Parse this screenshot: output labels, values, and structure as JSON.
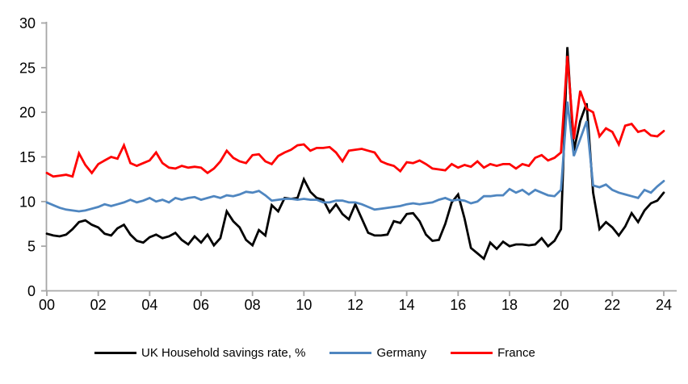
{
  "chart_data": {
    "type": "line",
    "title": "",
    "xlabel": "",
    "ylabel": "",
    "grid": false,
    "legend_position": "bottom",
    "ylim": [
      0,
      30
    ],
    "y_ticks": [
      0,
      5,
      10,
      15,
      20,
      25,
      30
    ],
    "x_tick_years": [
      2000,
      2002,
      2004,
      2006,
      2008,
      2010,
      2012,
      2014,
      2016,
      2018,
      2020,
      2022,
      2024
    ],
    "x_tick_labels": [
      "00",
      "02",
      "04",
      "06",
      "08",
      "10",
      "12",
      "14",
      "16",
      "18",
      "20",
      "22",
      "24"
    ],
    "x_start_year": 2000,
    "x_step_years": 0.25,
    "x_frequency": "quarterly",
    "axis_color": "#a6a6a6",
    "text_color": "#000000",
    "series": [
      {
        "name": "UK Household savings rate, %",
        "color": "#000000",
        "values": [
          6.4,
          6.2,
          6.1,
          6.3,
          6.9,
          7.7,
          7.9,
          7.4,
          7.1,
          6.4,
          6.2,
          7.0,
          7.4,
          6.3,
          5.6,
          5.4,
          6.0,
          6.3,
          5.9,
          6.1,
          6.5,
          5.7,
          5.2,
          6.1,
          5.4,
          6.3,
          5.1,
          5.9,
          8.9,
          7.8,
          7.1,
          5.7,
          5.1,
          6.8,
          6.2,
          9.6,
          8.9,
          10.4,
          10.3,
          10.4,
          12.5,
          11.1,
          10.4,
          10.2,
          8.8,
          9.7,
          8.6,
          8.0,
          9.7,
          8.1,
          6.5,
          6.2,
          6.2,
          6.3,
          7.8,
          7.6,
          8.6,
          8.7,
          7.8,
          6.3,
          5.6,
          5.7,
          7.5,
          9.9,
          10.8,
          8.1,
          4.8,
          4.2,
          3.6,
          5.4,
          4.7,
          5.5,
          5.0,
          5.2,
          5.2,
          5.1,
          5.2,
          5.9,
          5.0,
          5.6,
          6.9,
          27.3,
          15.7,
          19.0,
          21.0,
          11.0,
          6.9,
          7.7,
          7.1,
          6.2,
          7.2,
          8.7,
          7.7,
          9.0,
          9.8,
          10.1,
          11.0
        ]
      },
      {
        "name": "Germany",
        "color": "#4f86c0",
        "values": [
          9.9,
          9.6,
          9.3,
          9.1,
          9.0,
          8.9,
          9.0,
          9.2,
          9.4,
          9.7,
          9.5,
          9.7,
          9.9,
          10.2,
          9.9,
          10.1,
          10.4,
          10.0,
          10.2,
          9.9,
          10.4,
          10.2,
          10.4,
          10.5,
          10.2,
          10.4,
          10.6,
          10.4,
          10.7,
          10.6,
          10.8,
          11.1,
          11.0,
          11.2,
          10.7,
          10.1,
          10.2,
          10.3,
          10.3,
          10.2,
          10.3,
          10.2,
          10.2,
          9.9,
          9.9,
          10.1,
          10.1,
          9.9,
          9.9,
          9.7,
          9.4,
          9.1,
          9.2,
          9.3,
          9.4,
          9.5,
          9.7,
          9.8,
          9.7,
          9.8,
          9.9,
          10.2,
          10.4,
          10.1,
          10.2,
          10.1,
          9.8,
          10.0,
          10.6,
          10.6,
          10.7,
          10.7,
          11.4,
          11.0,
          11.3,
          10.8,
          11.3,
          11.0,
          10.7,
          10.6,
          11.3,
          21.2,
          15.1,
          17.0,
          19.0,
          11.8,
          11.6,
          11.9,
          11.3,
          11.0,
          10.8,
          10.6,
          10.4,
          11.3,
          11.0,
          11.7,
          12.3
        ]
      },
      {
        "name": "France",
        "color": "#ff0000",
        "values": [
          13.2,
          12.8,
          12.9,
          13.0,
          12.8,
          15.4,
          14.1,
          13.2,
          14.2,
          14.6,
          15.0,
          14.8,
          16.3,
          14.3,
          14.0,
          14.3,
          14.6,
          15.5,
          14.3,
          13.8,
          13.7,
          14.0,
          13.8,
          13.9,
          13.8,
          13.2,
          13.7,
          14.5,
          15.7,
          14.9,
          14.5,
          14.3,
          15.2,
          15.3,
          14.5,
          14.2,
          15.1,
          15.5,
          15.8,
          16.3,
          16.4,
          15.7,
          16.0,
          16.0,
          16.1,
          15.5,
          14.5,
          15.7,
          15.8,
          15.9,
          15.7,
          15.5,
          14.5,
          14.2,
          14.0,
          13.4,
          14.4,
          14.3,
          14.6,
          14.2,
          13.7,
          13.6,
          13.5,
          14.2,
          13.8,
          14.1,
          13.9,
          14.5,
          13.8,
          14.2,
          14.0,
          14.2,
          14.2,
          13.7,
          14.2,
          14.0,
          14.9,
          15.2,
          14.6,
          14.9,
          15.5,
          26.3,
          17.0,
          22.4,
          20.4,
          20.0,
          17.3,
          18.2,
          17.8,
          16.4,
          18.5,
          18.7,
          17.8,
          18.0,
          17.4,
          17.3,
          17.9
        ]
      }
    ]
  }
}
